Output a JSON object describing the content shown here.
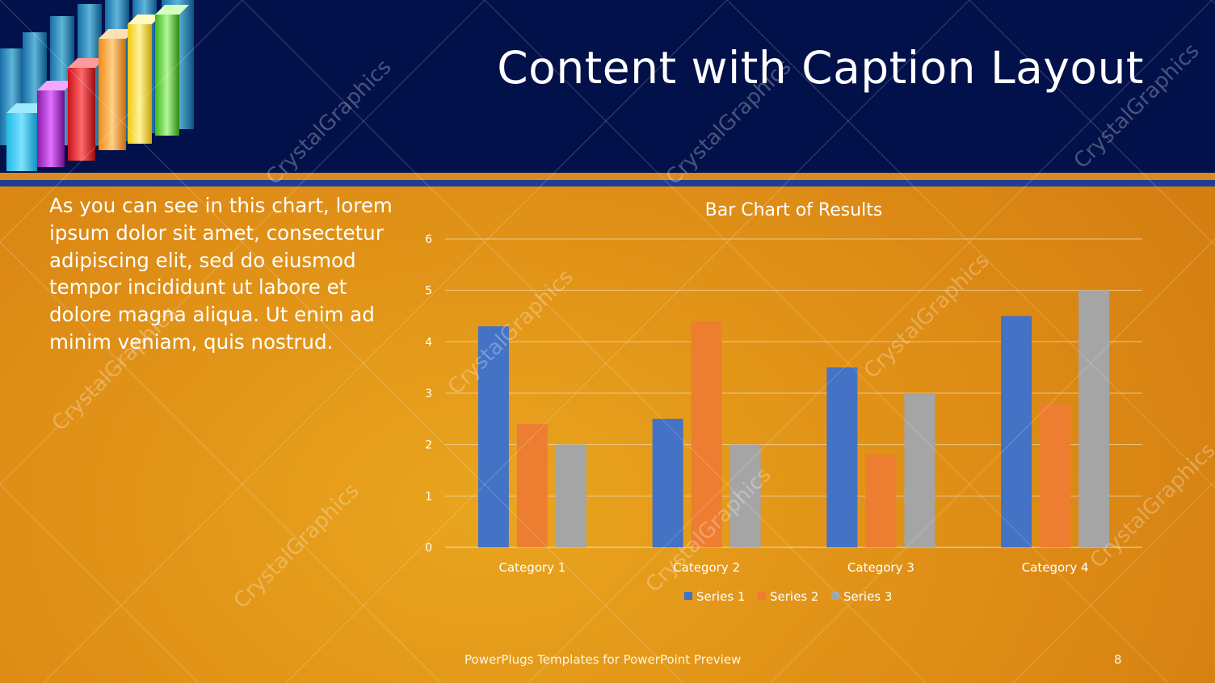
{
  "slide": {
    "title": "Content with Caption Layout",
    "caption": "As you can see in this chart, lorem ipsum dolor sit amet, consectetur adipiscing elit, sed do eiusmod tempor incididunt ut labore et dolore magna aliqua. Ut enim ad minim veniam, quis nostrud.",
    "footer": "PowerPlugs Templates for PowerPoint  Preview",
    "slide_number": "8",
    "watermark_text": "CrystalGraphics",
    "logo_icon": "bar-chart-graphic-icon"
  },
  "colors": {
    "header": "#03114a",
    "accent_orange": "#d98a22",
    "accent_blue": "#1f3d93",
    "series1": "#4472c4",
    "series2": "#ed7d31",
    "series3": "#a5a5a5"
  },
  "chart_data": {
    "type": "bar",
    "title": "Bar Chart of Results",
    "categories": [
      "Category 1",
      "Category 2",
      "Category 3",
      "Category 4"
    ],
    "series": [
      {
        "name": "Series 1",
        "values": [
          4.3,
          2.5,
          3.5,
          4.5
        ]
      },
      {
        "name": "Series 2",
        "values": [
          2.4,
          4.4,
          1.8,
          2.8
        ]
      },
      {
        "name": "Series 3",
        "values": [
          2,
          2,
          3,
          5
        ]
      }
    ],
    "ylim": [
      0,
      6
    ],
    "yticks": [
      "0",
      "1",
      "2",
      "3",
      "4",
      "5",
      "6"
    ],
    "grid": true,
    "legend": "bottom",
    "xlabel": "",
    "ylabel": ""
  }
}
